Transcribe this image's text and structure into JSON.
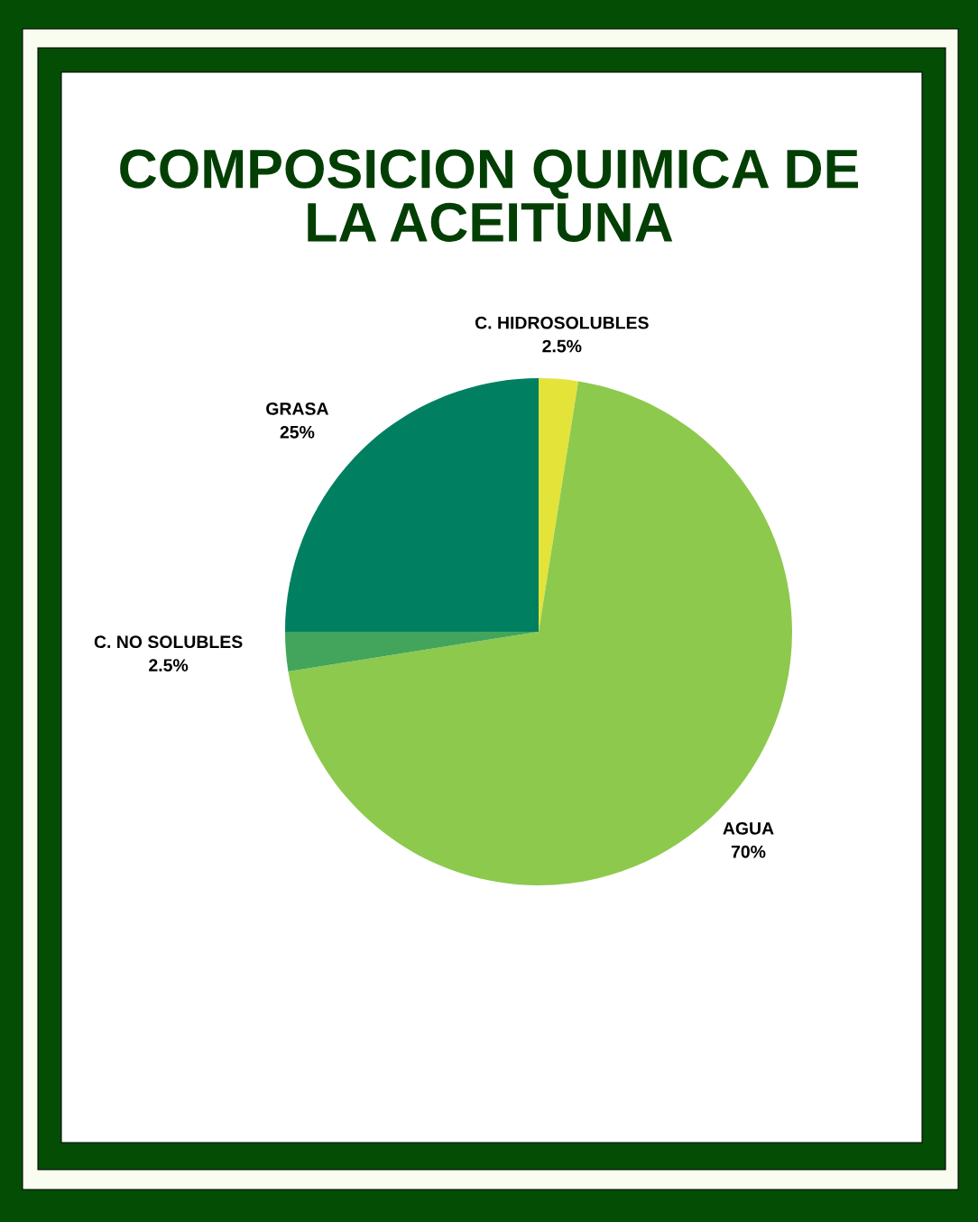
{
  "chart_data": {
    "type": "pie",
    "title": "COMPOSICION QUIMICA DE LA ACEITUNA",
    "categories": [
      "C. HIDROSOLUBLES",
      "AGUA",
      "C. NO SOLUBLES",
      "GRASA"
    ],
    "values": [
      2.5,
      70,
      2.5,
      25
    ],
    "colors": [
      "#e3e33a",
      "#8dc94d",
      "#42a55b",
      "#008061"
    ],
    "value_labels": [
      "2.5%",
      "70%",
      "2.5%",
      "25%"
    ]
  }
}
